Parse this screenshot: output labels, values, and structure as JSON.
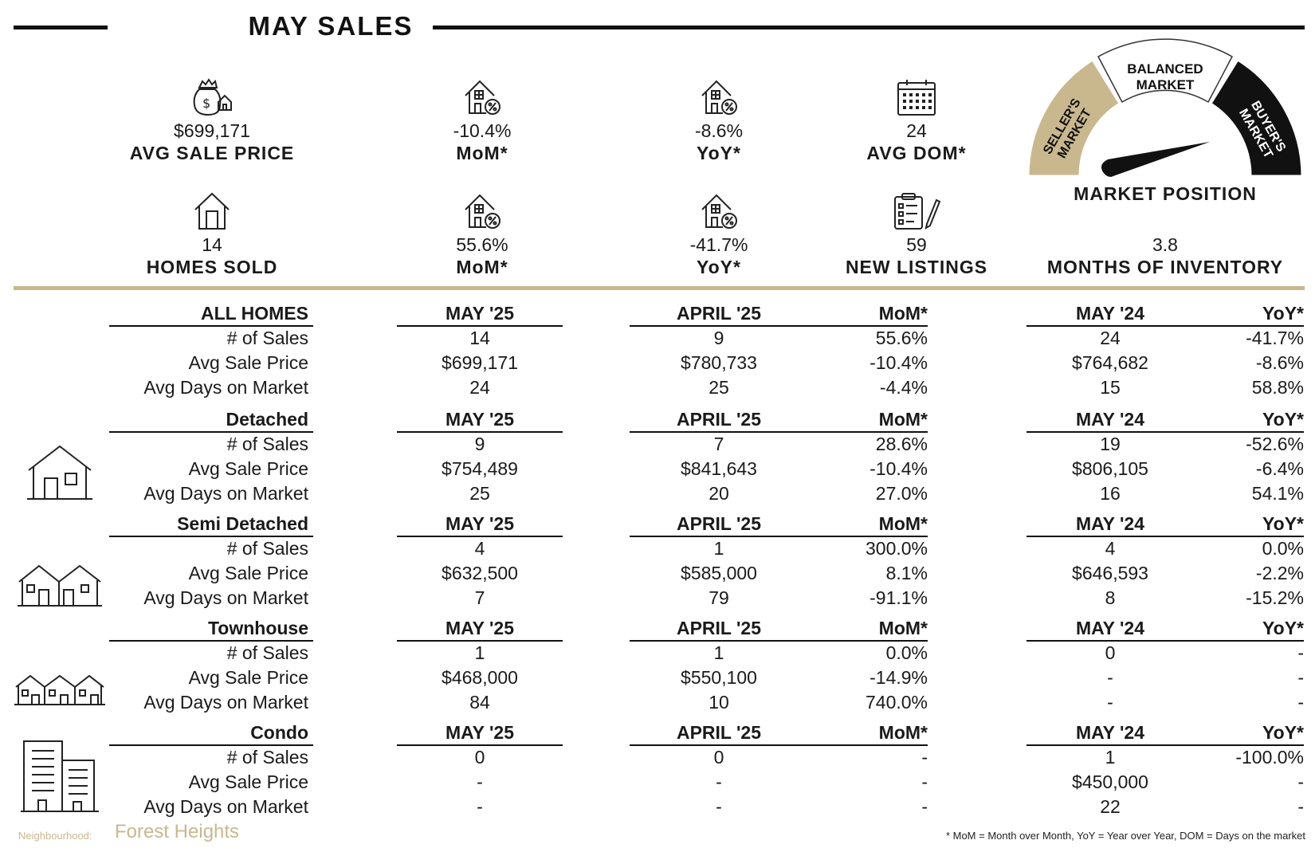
{
  "header": {
    "title": "MAY SALES"
  },
  "stats": [
    {
      "icon": "money-bag-house-icon",
      "value": "$699,171",
      "label": "AVG SALE PRICE"
    },
    {
      "icon": "house-percent-icon",
      "value": "-10.4%",
      "label": "MoM*"
    },
    {
      "icon": "house-percent-icon",
      "value": "-8.6%",
      "label": "YoY*"
    },
    {
      "icon": "calendar-icon",
      "value": "24",
      "label": "AVG DOM*"
    },
    {
      "icon": "house-icon",
      "value": "14",
      "label": "HOMES SOLD"
    },
    {
      "icon": "house-percent-icon",
      "value": "55.6%",
      "label": "MoM*"
    },
    {
      "icon": "house-percent-icon",
      "value": "-41.7%",
      "label": "YoY*"
    },
    {
      "icon": "clipboard-pen-icon",
      "value": "59",
      "label": "NEW LISTINGS"
    },
    {
      "icon": "",
      "value": "3.8",
      "label": "MONTHS OF INVENTORY"
    }
  ],
  "gauge": {
    "segments": [
      "SELLER'S MARKET",
      "BALANCED MARKET",
      "BUYER'S MARKET"
    ],
    "label": "MARKET POSITION",
    "colors": {
      "seller": "#c9b88e",
      "balanced": "#ffffff",
      "buyer": "#111111"
    },
    "position": "buyer"
  },
  "sections": [
    {
      "name": "ALL HOMES",
      "icon": "",
      "columns": [
        "MAY '25",
        "APRIL '25",
        "MoM*",
        "MAY '24",
        "YoY*"
      ],
      "rows": [
        {
          "label": "# of Sales",
          "values": [
            "14",
            "9",
            "55.6%",
            "24",
            "-41.7%"
          ]
        },
        {
          "label": "Avg Sale Price",
          "values": [
            "$699,171",
            "$780,733",
            "-10.4%",
            "$764,682",
            "-8.6%"
          ]
        },
        {
          "label": "Avg Days on Market",
          "values": [
            "24",
            "25",
            "-4.4%",
            "15",
            "58.8%"
          ]
        }
      ]
    },
    {
      "name": "Detached",
      "icon": "detached-house-icon",
      "columns": [
        "MAY '25",
        "APRIL '25",
        "MoM*",
        "MAY '24",
        "YoY*"
      ],
      "rows": [
        {
          "label": "# of Sales",
          "values": [
            "9",
            "7",
            "28.6%",
            "19",
            "-52.6%"
          ]
        },
        {
          "label": "Avg Sale Price",
          "values": [
            "$754,489",
            "$841,643",
            "-10.4%",
            "$806,105",
            "-6.4%"
          ]
        },
        {
          "label": "Avg Days on Market",
          "values": [
            "25",
            "20",
            "27.0%",
            "16",
            "54.1%"
          ]
        }
      ]
    },
    {
      "name": "Semi Detached",
      "icon": "semi-detached-house-icon",
      "columns": [
        "MAY '25",
        "APRIL '25",
        "MoM*",
        "MAY '24",
        "YoY*"
      ],
      "rows": [
        {
          "label": "# of Sales",
          "values": [
            "4",
            "1",
            "300.0%",
            "4",
            "0.0%"
          ]
        },
        {
          "label": "Avg Sale Price",
          "values": [
            "$632,500",
            "$585,000",
            "8.1%",
            "$646,593",
            "-2.2%"
          ]
        },
        {
          "label": "Avg Days on Market",
          "values": [
            "7",
            "79",
            "-91.1%",
            "8",
            "-15.2%"
          ]
        }
      ]
    },
    {
      "name": "Townhouse",
      "icon": "townhouse-icon",
      "columns": [
        "MAY '25",
        "APRIL '25",
        "MoM*",
        "MAY '24",
        "YoY*"
      ],
      "rows": [
        {
          "label": "# of Sales",
          "values": [
            "1",
            "1",
            "0.0%",
            "0",
            "-"
          ]
        },
        {
          "label": "Avg Sale Price",
          "values": [
            "$468,000",
            "$550,100",
            "-14.9%",
            "-",
            "-"
          ]
        },
        {
          "label": "Avg Days on Market",
          "values": [
            "84",
            "10",
            "740.0%",
            "-",
            "-"
          ]
        }
      ]
    },
    {
      "name": "Condo",
      "icon": "condo-building-icon",
      "columns": [
        "MAY '25",
        "APRIL '25",
        "MoM*",
        "MAY '24",
        "YoY*"
      ],
      "rows": [
        {
          "label": "# of Sales",
          "values": [
            "0",
            "0",
            "-",
            "1",
            "-100.0%"
          ]
        },
        {
          "label": "Avg Sale Price",
          "values": [
            "-",
            "-",
            "-",
            "$450,000",
            "-"
          ]
        },
        {
          "label": "Avg Days on Market",
          "values": [
            "-",
            "-",
            "-",
            "22",
            "-"
          ]
        }
      ]
    }
  ],
  "footer": {
    "neighbourhood_label": "Neighbourhood:",
    "neighbourhood_name": "Forest Heights",
    "note": "* MoM = Month over Month, YoY = Year over Year, DOM = Days on the market"
  }
}
